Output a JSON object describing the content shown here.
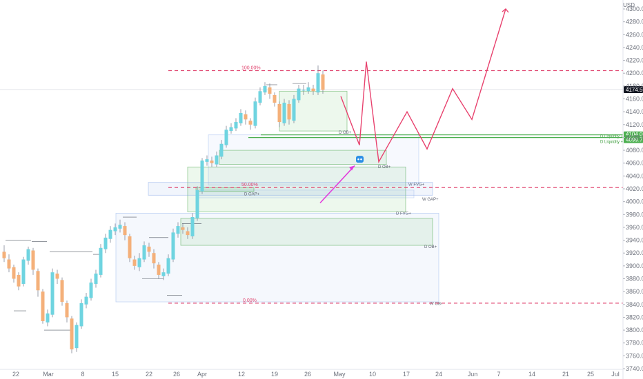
{
  "chart_data": {
    "type": "candlestick",
    "currency": "USD",
    "y_axis": {
      "range": [
        3740,
        4310
      ],
      "ticks": [
        "4300.00",
        "4280.00",
        "4260.00",
        "4240.00",
        "4220.00",
        "4200.00",
        "4180.00",
        "4160.00",
        "4140.00",
        "4120.00",
        "4100.00",
        "4080.00",
        "4060.00",
        "4040.00",
        "4020.00",
        "4000.00",
        "3980.00",
        "3960.00",
        "3940.00",
        "3920.00",
        "3900.00",
        "3880.00",
        "3860.00",
        "3840.00",
        "3820.00",
        "3800.00",
        "3780.00",
        "3760.00",
        "3740.00"
      ]
    },
    "x_axis": {
      "labels": [
        "22",
        "Mar",
        "8",
        "15",
        "22",
        "26",
        "Apr",
        "12",
        "19",
        "26",
        "May",
        "10",
        "17",
        "24",
        "Jun",
        "7",
        "14",
        "21",
        "25",
        "Jul"
      ]
    },
    "last_price": {
      "value": 4174.5,
      "label": "4174.50",
      "color": "#131722"
    },
    "candles": [
      [
        3922,
        3912,
        3932,
        3906
      ],
      [
        3910,
        3896,
        3918,
        3890
      ],
      [
        3898,
        3880,
        3902,
        3874
      ],
      [
        3886,
        3868,
        3890,
        3862
      ],
      [
        3872,
        3910,
        3914,
        3868
      ],
      [
        3908,
        3926,
        3930,
        3902
      ],
      [
        3924,
        3894,
        3928,
        3886
      ],
      [
        3892,
        3862,
        3896,
        3852
      ],
      [
        3860,
        3814,
        3864,
        3810
      ],
      [
        3812,
        3826,
        3832,
        3806
      ],
      [
        3824,
        3890,
        3896,
        3820
      ],
      [
        3888,
        3880,
        3894,
        3872
      ],
      [
        3878,
        3844,
        3882,
        3838
      ],
      [
        3842,
        3820,
        3846,
        3812
      ],
      [
        3818,
        3770,
        3822,
        3764
      ],
      [
        3772,
        3808,
        3812,
        3766
      ],
      [
        3806,
        3842,
        3848,
        3802
      ],
      [
        3840,
        3852,
        3858,
        3834
      ],
      [
        3850,
        3874,
        3880,
        3846
      ],
      [
        3872,
        3888,
        3894,
        3866
      ],
      [
        3886,
        3928,
        3934,
        3882
      ],
      [
        3926,
        3944,
        3950,
        3920
      ],
      [
        3942,
        3956,
        3962,
        3936
      ],
      [
        3954,
        3960,
        3966,
        3948
      ],
      [
        3958,
        3964,
        3972,
        3952
      ],
      [
        3962,
        3948,
        3968,
        3940
      ],
      [
        3946,
        3912,
        3950,
        3906
      ],
      [
        3910,
        3900,
        3916,
        3894
      ],
      [
        3898,
        3912,
        3920,
        3892
      ],
      [
        3910,
        3932,
        3938,
        3906
      ],
      [
        3930,
        3922,
        3936,
        3914
      ],
      [
        3920,
        3904,
        3926,
        3896
      ],
      [
        3902,
        3886,
        3906,
        3880
      ],
      [
        3884,
        3890,
        3896,
        3878
      ],
      [
        3888,
        3912,
        3918,
        3884
      ],
      [
        3910,
        3952,
        3958,
        3906
      ],
      [
        3950,
        3962,
        3968,
        3944
      ],
      [
        3960,
        3956,
        3966,
        3950
      ],
      [
        3954,
        3948,
        3960,
        3942
      ],
      [
        3946,
        3976,
        3982,
        3942
      ],
      [
        3974,
        4018,
        4024,
        3970
      ],
      [
        4016,
        4064,
        4068,
        4012
      ],
      [
        4062,
        4066,
        4072,
        4056
      ],
      [
        4064,
        4060,
        4070,
        4054
      ],
      [
        4058,
        4072,
        4078,
        4054
      ],
      [
        4070,
        4090,
        4096,
        4066
      ],
      [
        4088,
        4112,
        4118,
        4084
      ],
      [
        4110,
        4116,
        4122,
        4106
      ],
      [
        4114,
        4124,
        4130,
        4110
      ],
      [
        4122,
        4138,
        4144,
        4118
      ],
      [
        4136,
        4128,
        4142,
        4120
      ],
      [
        4126,
        4120,
        4130,
        4112
      ],
      [
        4118,
        4156,
        4162,
        4114
      ],
      [
        4154,
        4172,
        4178,
        4150
      ],
      [
        4170,
        4180,
        4186,
        4166
      ],
      [
        4178,
        4168,
        4184,
        4160
      ],
      [
        4166,
        4154,
        4170,
        4148
      ],
      [
        4152,
        4124,
        4156,
        4116
      ],
      [
        4122,
        4154,
        4160,
        4118
      ],
      [
        4152,
        4128,
        4158,
        4120
      ],
      [
        4126,
        4160,
        4166,
        4122
      ],
      [
        4158,
        4176,
        4182,
        4154
      ],
      [
        4174,
        4174,
        4182,
        4166
      ],
      [
        4172,
        4178,
        4186,
        4168
      ],
      [
        4176,
        4172,
        4182,
        4166
      ],
      [
        4170,
        4200,
        4212,
        4166
      ],
      [
        4198,
        4174,
        4204,
        4168
      ]
    ],
    "fib_levels": [
      {
        "label": "100.00%",
        "value": 4204,
        "color": "#e0456f"
      },
      {
        "label": "50.00%",
        "value": 4022,
        "color": "#e0456f"
      },
      {
        "label": "0.00%",
        "value": 3842,
        "color": "#e0456f"
      }
    ],
    "liquidity_levels": [
      {
        "label": "D Liquidity +",
        "value": 4104,
        "badge": "4104.00",
        "color": "#4caf50"
      },
      {
        "label": "D Liquidity +",
        "value": 4099.75,
        "badge": "4099.75",
        "color": "#4caf50"
      }
    ],
    "zone_labels": [
      "D OB+",
      "W FVG+",
      "D GAP+",
      "W GAP+",
      "D OB+",
      "D FVG+",
      "D OB+",
      "W OB+"
    ],
    "projection_path": [
      4164,
      4088,
      4218,
      4062,
      4140,
      4082,
      4176,
      4128,
      4300
    ],
    "arrow_color": "#e23cdc"
  }
}
